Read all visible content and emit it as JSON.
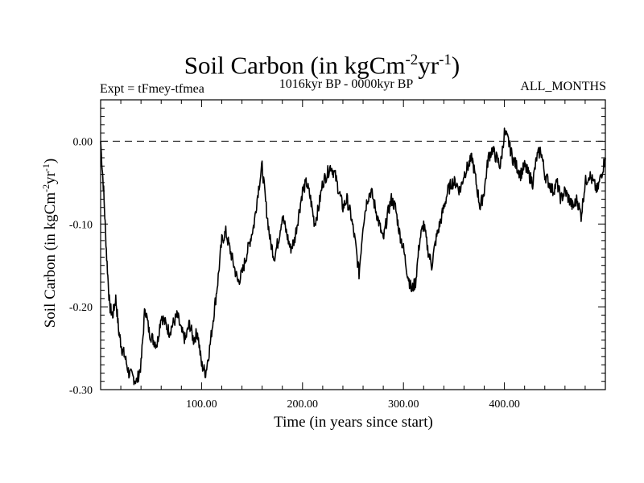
{
  "chart_data": {
    "type": "line",
    "title": "Soil Carbon (in kgCm",
    "title_sup1": "-2",
    "title_mid": "yr",
    "title_sup2": "-1",
    "title_end": ")",
    "subtitle_left": "Expt = tFmey-tfmea",
    "subtitle_center": "1016kyr BP - 0000kyr BP",
    "subtitle_right": "ALL_MONTHS",
    "xlabel": "Time (in years since start)",
    "ylabel_parts": [
      "Soil Carbon (in kgCm",
      "-2",
      "yr",
      "-1",
      ")"
    ],
    "xlim": [
      0,
      500
    ],
    "ylim": [
      -0.3,
      0.05
    ],
    "x_ticks": [
      100,
      200,
      300,
      400
    ],
    "x_tick_labels": [
      "100.00",
      "200.00",
      "300.00",
      "400.00"
    ],
    "y_ticks": [
      0.0,
      -0.1,
      -0.2,
      -0.3
    ],
    "y_tick_labels": [
      "0.00",
      "-0.10",
      "-0.20",
      "-0.30"
    ],
    "reference_line": 0.0,
    "series": [
      {
        "name": "Soil Carbon",
        "x": [
          0,
          3,
          6,
          9,
          12,
          15,
          18,
          21,
          24,
          28,
          32,
          36,
          40,
          44,
          48,
          52,
          56,
          60,
          64,
          68,
          72,
          76,
          80,
          84,
          88,
          92,
          96,
          100,
          104,
          108,
          112,
          116,
          120,
          124,
          128,
          132,
          136,
          140,
          144,
          148,
          152,
          156,
          160,
          164,
          168,
          172,
          176,
          180,
          184,
          188,
          192,
          196,
          200,
          204,
          208,
          212,
          216,
          220,
          224,
          228,
          232,
          236,
          240,
          244,
          248,
          252,
          256,
          260,
          264,
          268,
          272,
          276,
          280,
          284,
          288,
          292,
          296,
          300,
          304,
          308,
          312,
          316,
          320,
          324,
          328,
          332,
          336,
          340,
          344,
          348,
          352,
          356,
          360,
          364,
          368,
          372,
          376,
          380,
          384,
          388,
          392,
          396,
          400,
          404,
          408,
          412,
          416,
          420,
          424,
          428,
          432,
          436,
          440,
          444,
          448,
          452,
          456,
          460,
          464,
          468,
          472,
          476,
          480,
          484,
          488,
          492,
          496,
          500
        ],
        "values": [
          0.0,
          -0.06,
          -0.14,
          -0.2,
          -0.21,
          -0.19,
          -0.23,
          -0.25,
          -0.26,
          -0.28,
          -0.285,
          -0.29,
          -0.27,
          -0.2,
          -0.23,
          -0.24,
          -0.245,
          -0.21,
          -0.22,
          -0.23,
          -0.22,
          -0.21,
          -0.23,
          -0.24,
          -0.22,
          -0.24,
          -0.23,
          -0.27,
          -0.28,
          -0.25,
          -0.21,
          -0.17,
          -0.12,
          -0.11,
          -0.13,
          -0.15,
          -0.17,
          -0.16,
          -0.14,
          -0.12,
          -0.1,
          -0.06,
          -0.03,
          -0.08,
          -0.12,
          -0.14,
          -0.12,
          -0.09,
          -0.11,
          -0.13,
          -0.12,
          -0.09,
          -0.06,
          -0.05,
          -0.07,
          -0.1,
          -0.08,
          -0.05,
          -0.04,
          -0.03,
          -0.04,
          -0.06,
          -0.08,
          -0.07,
          -0.09,
          -0.12,
          -0.16,
          -0.1,
          -0.07,
          -0.06,
          -0.08,
          -0.1,
          -0.12,
          -0.09,
          -0.07,
          -0.08,
          -0.11,
          -0.13,
          -0.16,
          -0.18,
          -0.17,
          -0.12,
          -0.1,
          -0.13,
          -0.15,
          -0.12,
          -0.1,
          -0.08,
          -0.06,
          -0.05,
          -0.05,
          -0.06,
          -0.04,
          -0.03,
          -0.02,
          -0.05,
          -0.08,
          -0.06,
          -0.02,
          -0.01,
          -0.02,
          -0.03,
          0.01,
          0.0,
          -0.02,
          -0.03,
          -0.04,
          -0.03,
          -0.04,
          -0.05,
          -0.02,
          -0.01,
          -0.04,
          -0.05,
          -0.06,
          -0.05,
          -0.07,
          -0.06,
          -0.07,
          -0.08,
          -0.07,
          -0.09,
          -0.05,
          -0.04,
          -0.05,
          -0.06,
          -0.04,
          -0.02
        ]
      }
    ]
  }
}
